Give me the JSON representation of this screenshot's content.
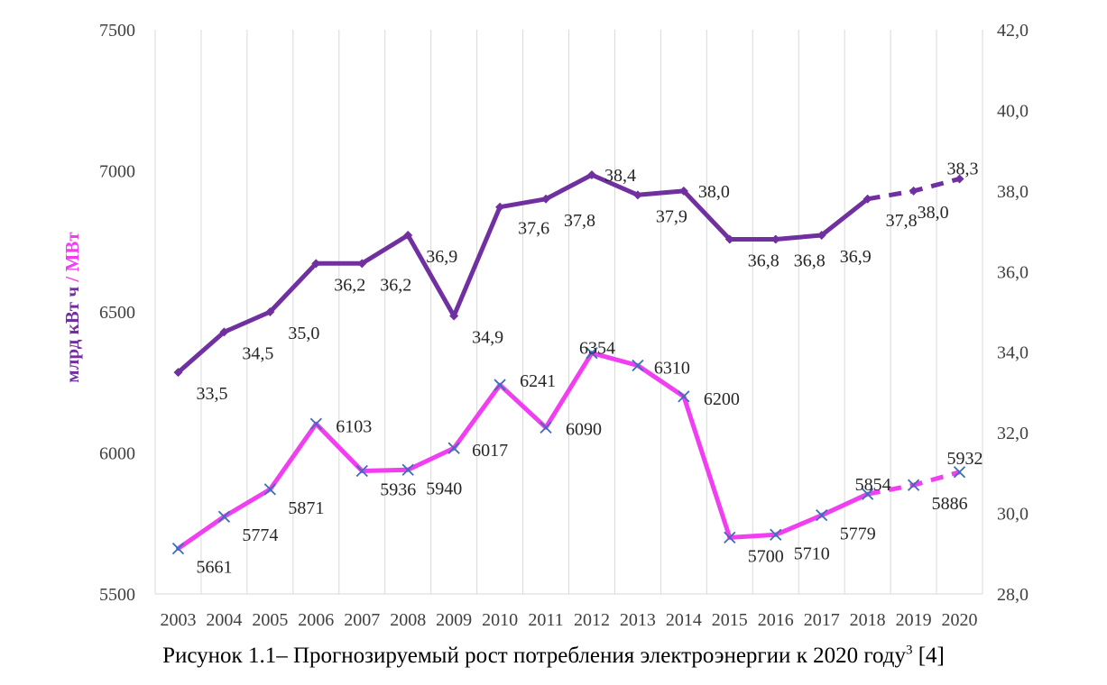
{
  "chart_data": {
    "type": "line",
    "categories": [
      "2003",
      "2004",
      "2005",
      "2006",
      "2007",
      "2008",
      "2009",
      "2010",
      "2011",
      "2012",
      "2013",
      "2014",
      "2015",
      "2016",
      "2017",
      "2018",
      "2019",
      "2020"
    ],
    "ylabel_part1": "млрд кВт ч",
    "ylabel_sep": " / ",
    "ylabel_part2": "МВт",
    "ylim": [
      5500,
      7500
    ],
    "y2lim": [
      28.0,
      42.0
    ],
    "y_ticks": [
      "5500",
      "6000",
      "6500",
      "7000",
      "7500"
    ],
    "y2_ticks": [
      "28,0",
      "30,0",
      "32,0",
      "34,0",
      "36,0",
      "38,0",
      "40,0",
      "42,0"
    ],
    "grid": "vertical",
    "series": [
      {
        "axis": "right",
        "color": "#7030A0",
        "marker": "diamond",
        "values": [
          33.5,
          34.5,
          35.0,
          36.2,
          36.2,
          36.9,
          34.9,
          37.6,
          37.8,
          38.4,
          37.9,
          38.0,
          36.8,
          36.8,
          36.9,
          37.8,
          38.0,
          38.3
        ],
        "labels": [
          "33,5",
          "34,5",
          "35,0",
          "36,2",
          "36,2",
          "36,9",
          "34,9",
          "37,6",
          "37,8",
          "38,4",
          "37,9",
          "38,0",
          "36,8",
          "36,8",
          "36,9",
          "37,8",
          "38,0",
          "38,3"
        ],
        "forecast_from_index": 15
      },
      {
        "axis": "left",
        "color": "#F13EF1",
        "marker_color": "#3A6FB8",
        "marker": "x",
        "values": [
          5661,
          5774,
          5871,
          6103,
          5936,
          5940,
          6017,
          6241,
          6090,
          6354,
          6310,
          6200,
          5700,
          5710,
          5779,
          5854,
          5886,
          5932
        ],
        "labels": [
          "5661",
          "5774",
          "5871",
          "6103",
          "5936",
          "5940",
          "6017",
          "6241",
          "6090",
          "6354",
          "6310",
          "6200",
          "5700",
          "5710",
          "5779",
          "5854",
          "5886",
          "5932"
        ],
        "forecast_from_index": 15
      }
    ]
  },
  "caption": {
    "text": "Рисунок 1.1– Прогнозируемый рост потребления электроэнергии к 2020 году",
    "sup": "3",
    "ref": " [4]"
  }
}
